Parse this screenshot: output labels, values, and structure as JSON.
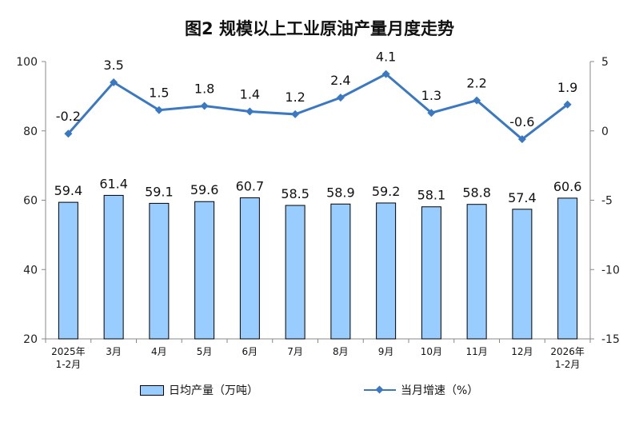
{
  "chart_data": {
    "title": "图2  规模以上工业原油产量月度走势",
    "categories": [
      [
        "2025年",
        "1-2月"
      ],
      [
        "3月"
      ],
      [
        "4月"
      ],
      [
        "5月"
      ],
      [
        "6月"
      ],
      [
        "7月"
      ],
      [
        "8月"
      ],
      [
        "9月"
      ],
      [
        "10月"
      ],
      [
        "11月"
      ],
      [
        "12月"
      ],
      [
        "2026年",
        "1-2月"
      ]
    ],
    "bar_series": {
      "name": "日均产量（万吨）",
      "type": "bar",
      "axis": "left",
      "color": "#99ccff",
      "values": [
        59.4,
        61.4,
        59.1,
        59.6,
        60.7,
        58.5,
        58.9,
        59.2,
        58.1,
        58.8,
        57.4,
        60.6
      ]
    },
    "line_series": {
      "name": "当月增速（%）",
      "type": "line",
      "axis": "right",
      "color": "#3a78c3",
      "marker": "diamond",
      "values": [
        -0.2,
        3.5,
        1.5,
        1.8,
        1.4,
        1.2,
        2.4,
        4.1,
        1.3,
        2.2,
        -0.6,
        1.9
      ]
    },
    "left_axis": {
      "min": 20,
      "max": 100,
      "ticks": [
        20,
        40,
        60,
        80,
        100
      ]
    },
    "right_axis": {
      "min": -15,
      "max": 5,
      "ticks": [
        -15,
        -10,
        -5,
        0,
        5
      ]
    },
    "legend_position": "bottom",
    "grid": false
  }
}
